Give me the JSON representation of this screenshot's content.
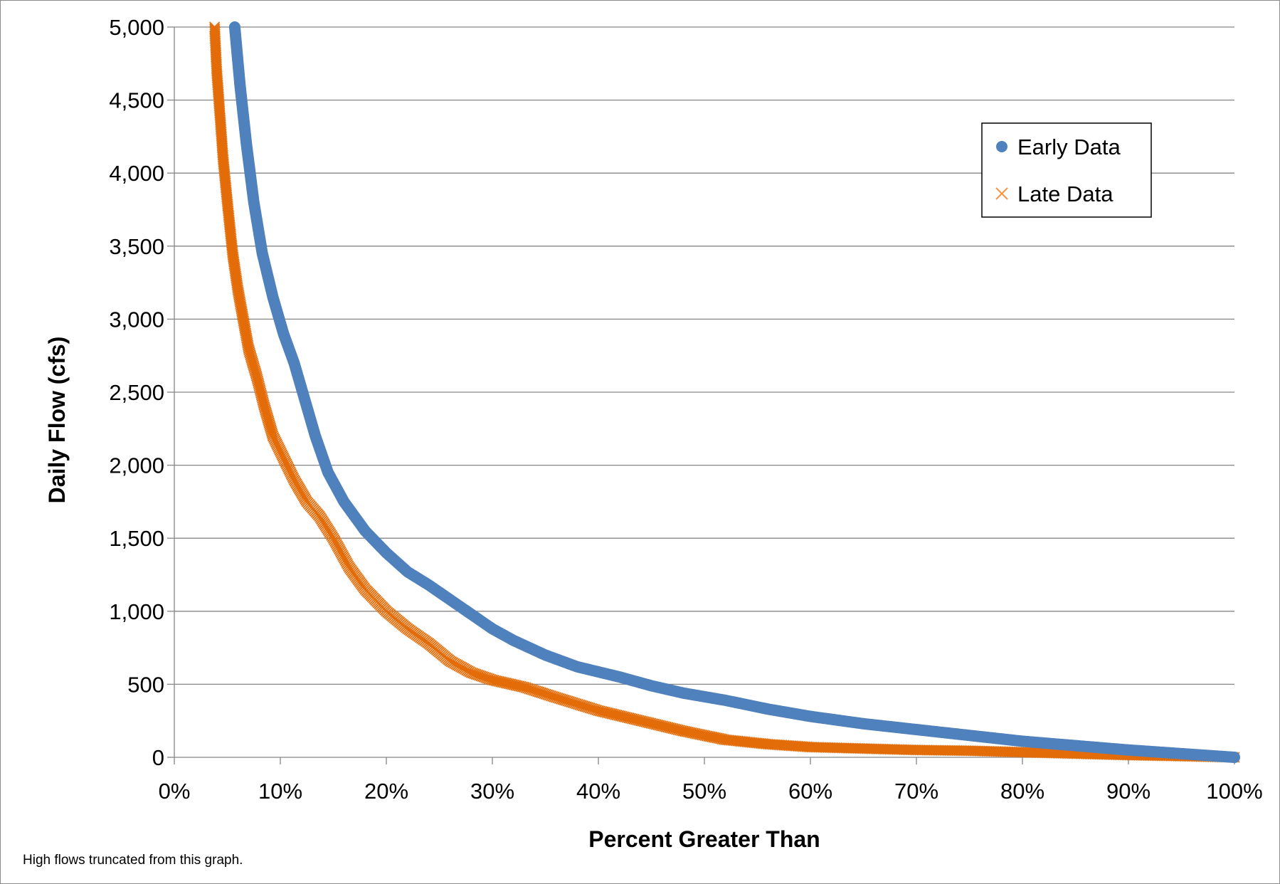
{
  "chart_data": {
    "type": "scatter",
    "title": "",
    "xlabel": "Percent Greater Than",
    "ylabel": "Daily Flow (cfs)",
    "xlim": [
      0,
      100
    ],
    "ylim": [
      0,
      5000
    ],
    "x_ticks": [
      "0%",
      "10%",
      "20%",
      "30%",
      "40%",
      "50%",
      "60%",
      "70%",
      "80%",
      "90%",
      "100%"
    ],
    "y_ticks": [
      "0",
      "500",
      "1,000",
      "1,500",
      "2,000",
      "2,500",
      "3,000",
      "3,500",
      "4,000",
      "4,500",
      "5,000"
    ],
    "grid": "horizontal",
    "legend_position": "top-right",
    "footnote": "High flows truncated from this graph.",
    "series": [
      {
        "name": "Early Data",
        "marker": "circle",
        "color": "#4F81BD",
        "points": [
          [
            5.7,
            5000
          ],
          [
            6.2,
            4600
          ],
          [
            6.8,
            4200
          ],
          [
            7.5,
            3800
          ],
          [
            8.3,
            3450
          ],
          [
            9.3,
            3150
          ],
          [
            10.3,
            2900
          ],
          [
            11.3,
            2700
          ],
          [
            12.3,
            2450
          ],
          [
            13.3,
            2200
          ],
          [
            14.5,
            1950
          ],
          [
            16.0,
            1750
          ],
          [
            18.0,
            1550
          ],
          [
            20.0,
            1400
          ],
          [
            22.0,
            1270
          ],
          [
            24.0,
            1180
          ],
          [
            26.0,
            1080
          ],
          [
            28.0,
            980
          ],
          [
            30.0,
            880
          ],
          [
            32.0,
            800
          ],
          [
            35.0,
            700
          ],
          [
            38.0,
            620
          ],
          [
            42.0,
            550
          ],
          [
            45.0,
            490
          ],
          [
            48.0,
            440
          ],
          [
            52.0,
            390
          ],
          [
            56.0,
            330
          ],
          [
            60.0,
            280
          ],
          [
            65.0,
            230
          ],
          [
            70.0,
            190
          ],
          [
            75.0,
            150
          ],
          [
            80.0,
            110
          ],
          [
            85.0,
            80
          ],
          [
            90.0,
            50
          ],
          [
            95.0,
            25
          ],
          [
            100.0,
            0
          ]
        ]
      },
      {
        "name": "Late Data",
        "marker": "x",
        "color": "#E36C09",
        "points": [
          [
            3.8,
            5000
          ],
          [
            4.0,
            4700
          ],
          [
            4.3,
            4400
          ],
          [
            4.6,
            4100
          ],
          [
            5.0,
            3800
          ],
          [
            5.5,
            3450
          ],
          [
            6.0,
            3200
          ],
          [
            6.5,
            3000
          ],
          [
            7.0,
            2800
          ],
          [
            7.8,
            2600
          ],
          [
            8.5,
            2400
          ],
          [
            9.3,
            2200
          ],
          [
            10.3,
            2050
          ],
          [
            11.3,
            1900
          ],
          [
            12.5,
            1750
          ],
          [
            13.7,
            1650
          ],
          [
            15.0,
            1500
          ],
          [
            16.5,
            1300
          ],
          [
            18.0,
            1150
          ],
          [
            20.0,
            1000
          ],
          [
            22.0,
            880
          ],
          [
            24.0,
            780
          ],
          [
            26.0,
            660
          ],
          [
            28.0,
            580
          ],
          [
            30.0,
            530
          ],
          [
            33.0,
            480
          ],
          [
            36.0,
            410
          ],
          [
            40.0,
            320
          ],
          [
            44.0,
            250
          ],
          [
            48.0,
            180
          ],
          [
            52.0,
            120
          ],
          [
            56.0,
            90
          ],
          [
            60.0,
            70
          ],
          [
            65.0,
            60
          ],
          [
            70.0,
            50
          ],
          [
            75.0,
            45
          ],
          [
            80.0,
            35
          ],
          [
            85.0,
            25
          ],
          [
            90.0,
            15
          ],
          [
            95.0,
            8
          ],
          [
            100.0,
            0
          ]
        ]
      }
    ]
  }
}
